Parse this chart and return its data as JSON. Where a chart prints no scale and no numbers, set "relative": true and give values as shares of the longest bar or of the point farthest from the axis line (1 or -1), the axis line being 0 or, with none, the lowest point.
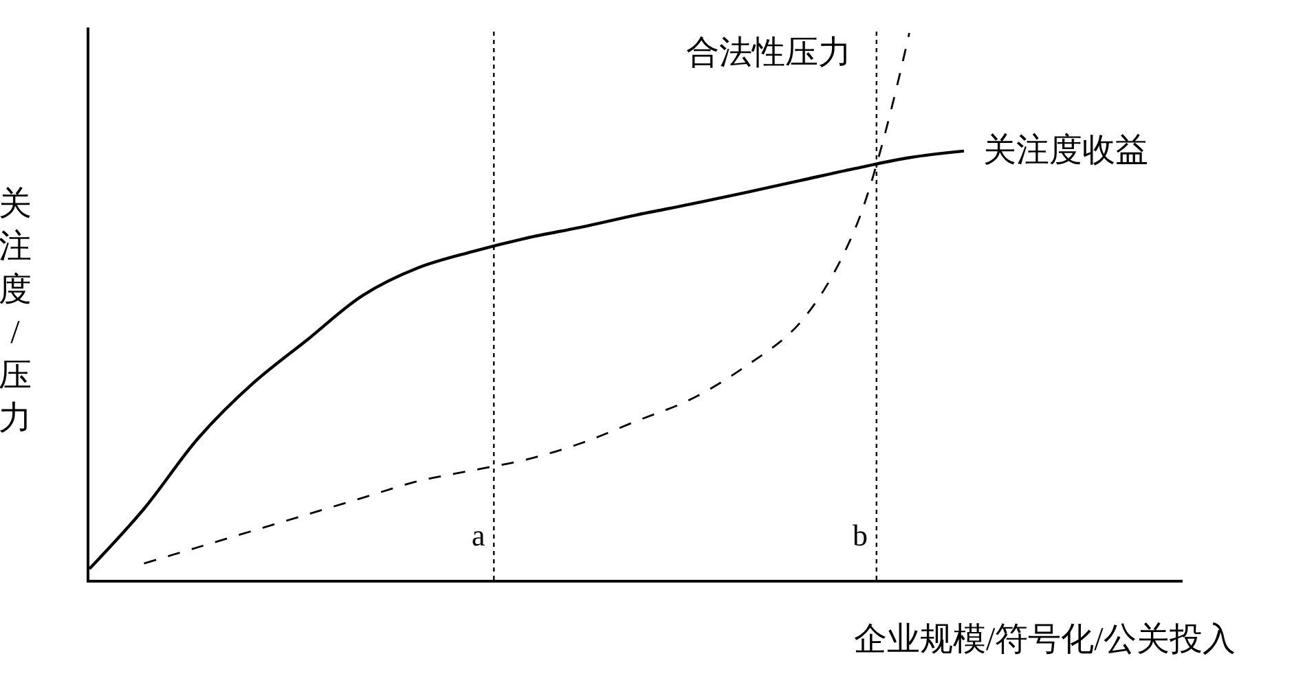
{
  "chart_data": {
    "type": "line",
    "relative": true,
    "xlabel": "企业规模/符号化/公关投入",
    "ylabel": "关注度/压力",
    "legend": false,
    "categories": [
      null,
      null,
      null,
      null,
      null,
      null,
      null,
      null,
      null,
      null,
      null,
      null,
      null,
      null,
      null,
      null,
      null,
      null,
      null,
      null,
      null
    ],
    "series": [
      {
        "name": "关注度收益",
        "color": "#000000",
        "line_style": "solid",
        "values": [
          0.02,
          0.13,
          0.26,
          0.36,
          0.44,
          0.52,
          0.57,
          0.6,
          0.625,
          0.645,
          0.667,
          0.687,
          0.708,
          0.73,
          0.752,
          0.772,
          0.784,
          null,
          null,
          null,
          null
        ]
      },
      {
        "name": "合法性压力",
        "color": "#000000",
        "line_style": "dashed",
        "values": [
          null,
          0.03,
          0.06,
          0.09,
          0.12,
          0.15,
          0.18,
          0.2,
          0.22,
          0.25,
          0.29,
          0.33,
          0.39,
          0.47,
          0.64,
          1.0,
          null,
          null,
          null,
          null,
          null
        ]
      }
    ],
    "annotations": [
      "a",
      "b"
    ]
  }
}
